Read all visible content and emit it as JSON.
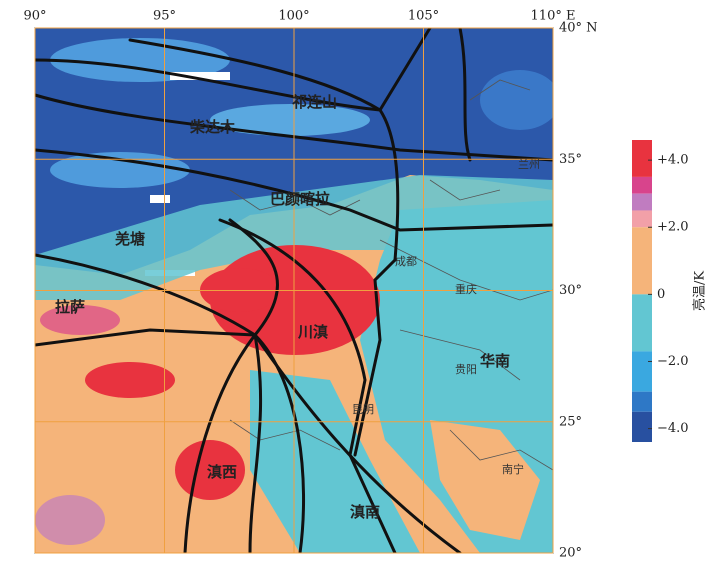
{
  "map": {
    "xlim": [
      90,
      110
    ],
    "ylim": [
      20,
      40
    ],
    "xticks": [
      {
        "value": 90,
        "label": "90°"
      },
      {
        "value": 95,
        "label": "95°"
      },
      {
        "value": 100,
        "label": "100°"
      },
      {
        "value": 105,
        "label": "105°"
      },
      {
        "value": 110,
        "label": "110° E"
      }
    ],
    "yticks": [
      {
        "value": 40,
        "label": "40° N"
      },
      {
        "value": 35,
        "label": "35°"
      },
      {
        "value": 30,
        "label": "30°"
      },
      {
        "value": 25,
        "label": "25°"
      },
      {
        "value": 20,
        "label": "20°"
      }
    ],
    "grid_color": "#f0a040",
    "regions": [
      "祁连山",
      "柴达木",
      "巴颜喀拉",
      "羌塘",
      "拉萨",
      "川滇",
      "华南",
      "滇西",
      "滇南"
    ],
    "cities": [
      "兰州",
      "成都",
      "重庆",
      "贵阳",
      "昆明",
      "南宁"
    ]
  },
  "colorbar": {
    "title": "亮温/K",
    "bounds": [
      4.6,
      3.5,
      3,
      2.5,
      2,
      0,
      -1.7,
      -2.9,
      -3.5,
      -4.4
    ],
    "colors": [
      "#e8333f",
      "#d8448c",
      "#c07cc0",
      "#f2a0a8",
      "#f5b47a",
      "#62c6d2",
      "#3aa8e0",
      "#2e78c6",
      "#2850a0"
    ],
    "ticks": [
      {
        "value": 4,
        "label": "+4.0"
      },
      {
        "value": 2,
        "label": "+2.0"
      },
      0,
      {
        "value": -2,
        "label": "−2.0"
      },
      {
        "value": -4,
        "label": "−4.0"
      }
    ]
  }
}
